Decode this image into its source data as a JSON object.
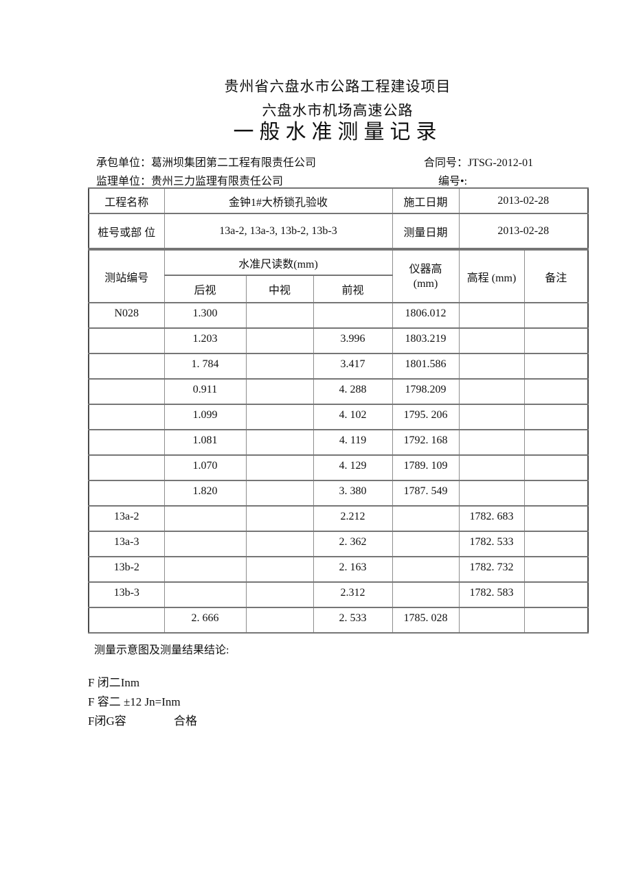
{
  "titles": {
    "line1": "贵州省六盘水市公路工程建设项目",
    "line2": "六盘水市机场高速公路",
    "line3": "一般水准测量记录"
  },
  "meta": {
    "contractor": "承包单位：葛洲坝集团第二工程有限责任公司",
    "contract_no": "合同号：JTSG-2012-01",
    "supervisor": "监理单位：贵州三力监理有限责任公司",
    "doc_no": "编号•:"
  },
  "info_table": {
    "project_name_label": "工程名称",
    "project_name_value": "金钟1#大桥锁孔验收",
    "construction_date_label": "施工日期",
    "construction_date_value": "2013-02-28",
    "station_label": "桩号或部 位",
    "station_value": "13a-2, 13a-3, 13b-2, 13b-3",
    "survey_date_label": "测量日期",
    "survey_date_value": "2013-02-28"
  },
  "table": {
    "headers": {
      "station": "测站编号",
      "readings_group": "水准尺读数(mm)",
      "back": "后视",
      "mid": "中视",
      "front": "前视",
      "instrument_line1": "仪器高",
      "instrument_line2": "(mm)",
      "elevation": "高程 (mm)",
      "note": "备注"
    },
    "rows": [
      {
        "station": "N028",
        "back": "1.300",
        "mid": "",
        "front": "",
        "instrument": "1806.012",
        "elevation": "",
        "note": ""
      },
      {
        "station": "",
        "back": "1.203",
        "mid": "",
        "front": "3.996",
        "instrument": "1803.219",
        "elevation": "",
        "note": ""
      },
      {
        "station": "",
        "back": "1. 784",
        "mid": "",
        "front": "3.417",
        "instrument": "1801.586",
        "elevation": "",
        "note": ""
      },
      {
        "station": "",
        "back": "0.911",
        "mid": "",
        "front": "4. 288",
        "instrument": "1798.209",
        "elevation": "",
        "note": ""
      },
      {
        "station": "",
        "back": "1.099",
        "mid": "",
        "front": "4. 102",
        "instrument": "1795. 206",
        "elevation": "",
        "note": ""
      },
      {
        "station": "",
        "back": "1.081",
        "mid": "",
        "front": "4. 119",
        "instrument": "1792. 168",
        "elevation": "",
        "note": ""
      },
      {
        "station": "",
        "back": "1.070",
        "mid": "",
        "front": "4. 129",
        "instrument": "1789. 109",
        "elevation": "",
        "note": ""
      },
      {
        "station": "",
        "back": "1.820",
        "mid": "",
        "front": "3. 380",
        "instrument": "1787. 549",
        "elevation": "",
        "note": ""
      },
      {
        "station": "13a-2",
        "back": "",
        "mid": "",
        "front": "2.212",
        "instrument": "",
        "elevation": "1782. 683",
        "note": ""
      },
      {
        "station": "13a-3",
        "back": "",
        "mid": "",
        "front": "2. 362",
        "instrument": "",
        "elevation": "1782. 533",
        "note": ""
      },
      {
        "station": "13b-2",
        "back": "",
        "mid": "",
        "front": "2. 163",
        "instrument": "",
        "elevation": "1782. 732",
        "note": ""
      },
      {
        "station": "13b-3",
        "back": "",
        "mid": "",
        "front": "2.312",
        "instrument": "",
        "elevation": "1782. 583",
        "note": ""
      },
      {
        "station": "",
        "back": "2. 666",
        "mid": "",
        "front": "2. 533",
        "instrument": "1785. 028",
        "elevation": "",
        "note": ""
      }
    ]
  },
  "footer": {
    "conclusion_label": "测量示意图及测量结果结论:",
    "line1": "F 闭二Inm",
    "line2": "F 容二 ±12 Jn=Inm",
    "line3_left": "F闭G容",
    "line3_right": "合格"
  }
}
